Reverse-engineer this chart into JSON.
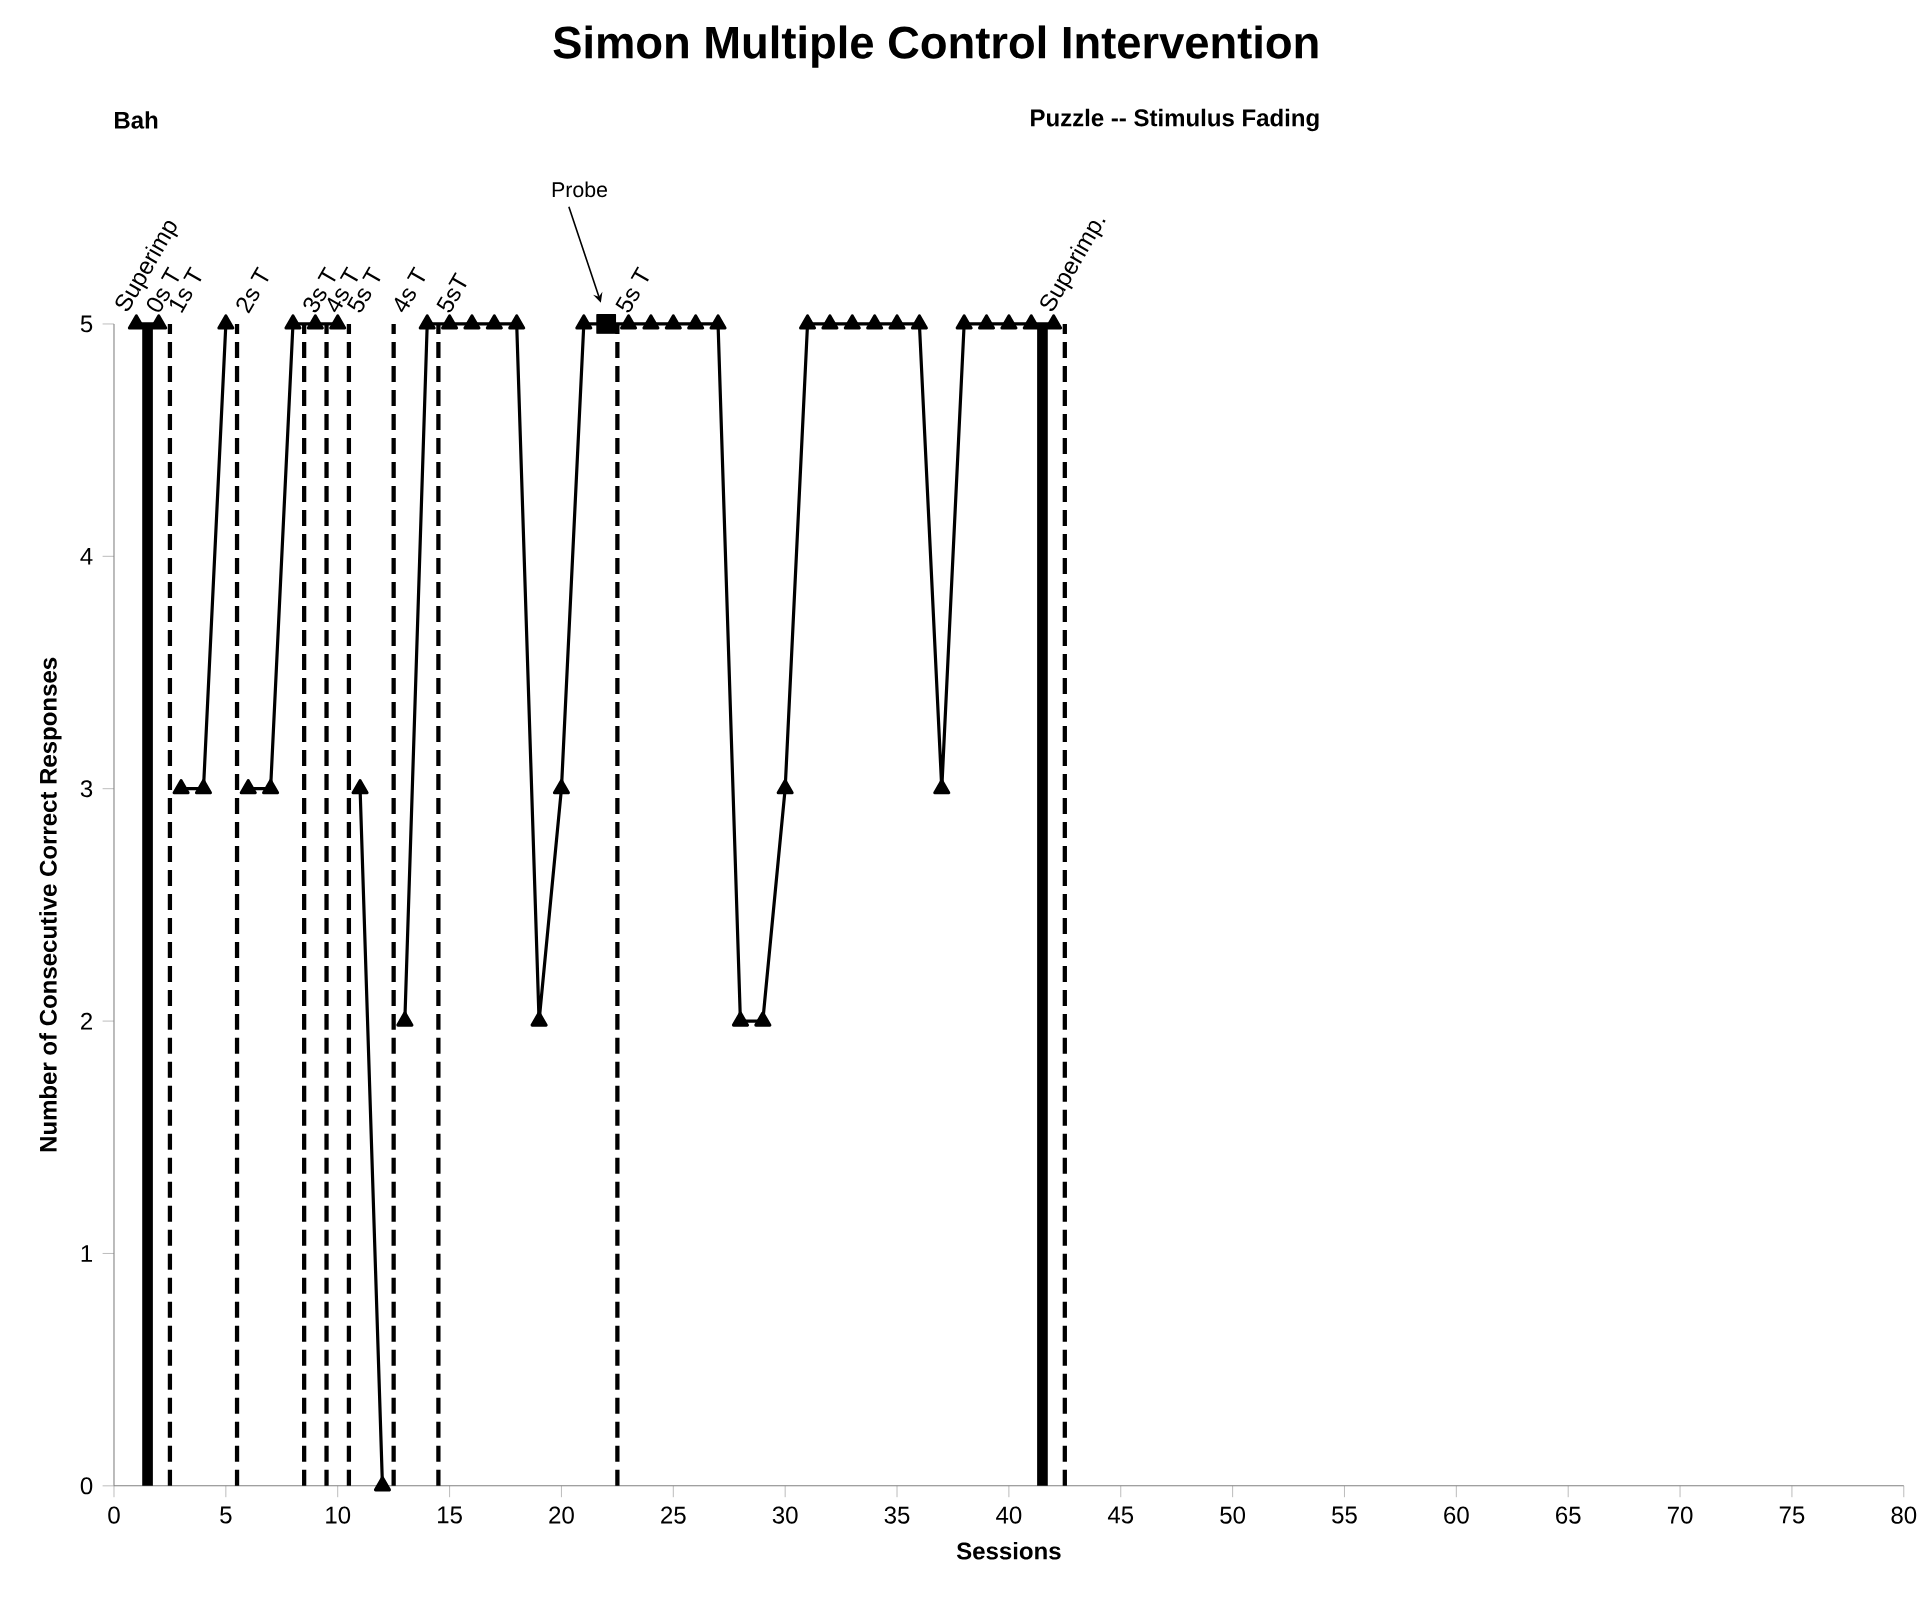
{
  "chart_data": {
    "type": "line",
    "title": "Simon Multiple Control Intervention",
    "subtitle": "Bah",
    "xlabel": "Sessions",
    "ylabel": "Number of Consecutive Correct Responses",
    "xlim": [
      0,
      80
    ],
    "xticks": [
      0,
      5,
      10,
      15,
      20,
      25,
      30,
      35,
      40,
      45,
      50,
      55,
      60,
      65,
      70,
      75,
      80
    ],
    "ylim": [
      0,
      5
    ],
    "yticks": [
      0,
      1,
      2,
      3,
      4,
      5
    ],
    "grid": false,
    "series": [
      {
        "color": "#000000",
        "marker": "triangle",
        "line_style": "solid",
        "x": [
          1,
          2,
          2.5,
          3,
          4,
          5,
          5.5,
          6,
          7,
          8,
          9,
          10,
          10.5,
          11,
          12,
          12.5,
          13,
          14,
          15,
          16,
          17,
          18,
          19,
          20,
          21,
          23,
          24,
          25,
          26,
          27,
          28,
          29,
          30,
          31,
          32,
          33,
          34,
          35,
          36,
          37,
          38,
          39,
          40,
          41,
          42
        ],
        "values": [
          5,
          5,
          null,
          3,
          3,
          5,
          null,
          3,
          3,
          5,
          5,
          5,
          null,
          3,
          0,
          null,
          2,
          5,
          5,
          5,
          5,
          5,
          2,
          3,
          5,
          5,
          5,
          5,
          5,
          5,
          2,
          2,
          3,
          5,
          5,
          5,
          5,
          5,
          5,
          3,
          5,
          5,
          5,
          5,
          5
        ]
      },
      {
        "type": "scatter",
        "name": "Probe",
        "color": "#000000",
        "marker": "square",
        "x": [
          22
        ],
        "values": [
          5
        ]
      }
    ],
    "ref_lines": [
      {
        "axis": "x",
        "value": 1.5,
        "line_style": "solid",
        "label": "0s T"
      },
      {
        "axis": "x",
        "value": 2.5,
        "line_style": "dashed",
        "label": "1s T"
      },
      {
        "axis": "x",
        "value": 5.5,
        "line_style": "dashed",
        "label": "2s T"
      },
      {
        "axis": "x",
        "value": 8.5,
        "line_style": "dashed",
        "label": "3s T"
      },
      {
        "axis": "x",
        "value": 9.5,
        "line_style": "dashed",
        "label": "4s T"
      },
      {
        "axis": "x",
        "value": 10.5,
        "line_style": "dashed",
        "label": "5s T"
      },
      {
        "axis": "x",
        "value": 12.5,
        "line_style": "dashed",
        "label": "4s T"
      },
      {
        "axis": "x",
        "value": 14.5,
        "line_style": "dashed",
        "label": "5sT"
      },
      {
        "axis": "x",
        "value": 22.5,
        "line_style": "dashed",
        "label": "5s T"
      },
      {
        "axis": "x",
        "value": 41.5,
        "line_style": "solid",
        "label": "Superimp."
      },
      {
        "axis": "x",
        "value": 42.5,
        "line_style": "dashed"
      }
    ],
    "annotations": [
      "Puzzle -- Stimulus Fading",
      {
        "text": "Superimp",
        "x": 1,
        "y": 5
      }
    ]
  }
}
